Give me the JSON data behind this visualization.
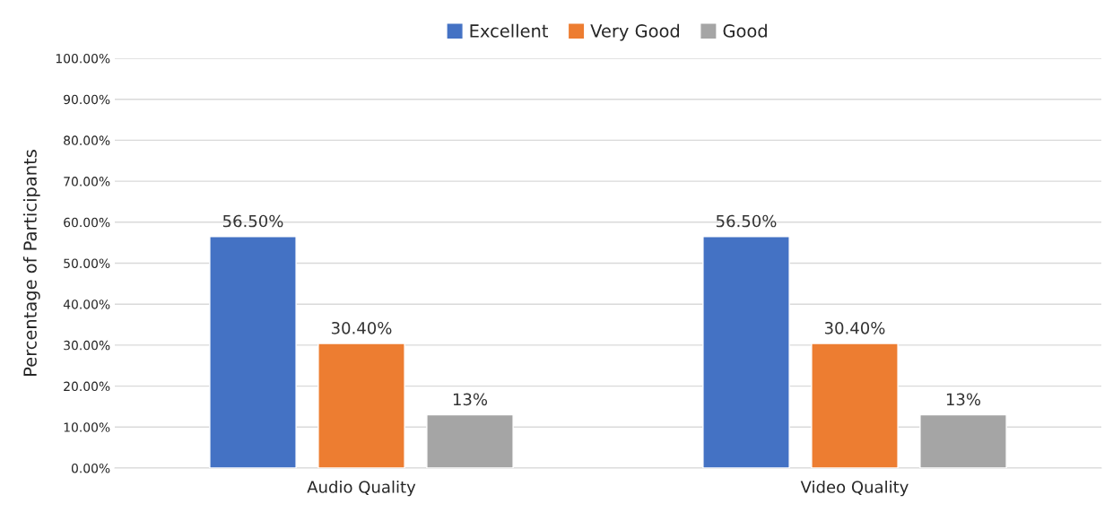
{
  "chart_data": {
    "type": "bar",
    "ylabel": "Percentage of Participants",
    "categories": [
      "Audio Quality",
      "Video Quality"
    ],
    "series": [
      {
        "name": "Excellent",
        "color": "#4472c4",
        "values": [
          56.5,
          56.5
        ],
        "value_labels": [
          "56.50%",
          "56.50%"
        ]
      },
      {
        "name": "Very Good",
        "color": "#ed7d31",
        "values": [
          30.4,
          30.4
        ],
        "value_labels": [
          "30.40%",
          "30.40%"
        ]
      },
      {
        "name": "Good",
        "color": "#a5a5a5",
        "values": [
          13,
          13
        ],
        "value_labels": [
          "13%",
          "13%"
        ]
      }
    ],
    "ylim": [
      0,
      100
    ],
    "yticks": [
      {
        "value": 0,
        "label": "0.00%"
      },
      {
        "value": 10,
        "label": "10.00%"
      },
      {
        "value": 20,
        "label": "20.00%"
      },
      {
        "value": 30,
        "label": "30.00%"
      },
      {
        "value": 40,
        "label": "40.00%"
      },
      {
        "value": 50,
        "label": "50.00%"
      },
      {
        "value": 60,
        "label": "60.00%"
      },
      {
        "value": 70,
        "label": "70.00%"
      },
      {
        "value": 80,
        "label": "80.00%"
      },
      {
        "value": 90,
        "label": "90.00%"
      },
      {
        "value": 100,
        "label": "100.00%"
      }
    ],
    "grid": "y",
    "legend": "top"
  }
}
